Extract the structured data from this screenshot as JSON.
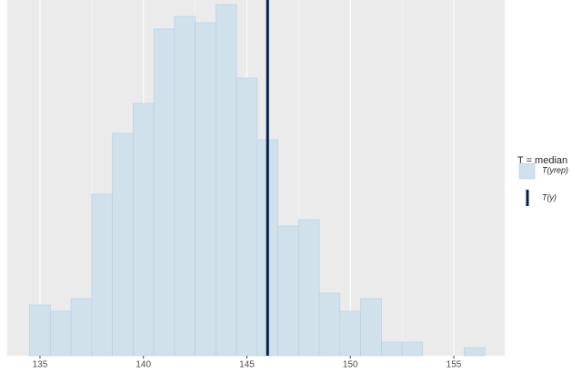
{
  "chart_data": {
    "type": "histogram",
    "bins": [
      134.5,
      135.5,
      136.5,
      137.5,
      138.5,
      139.5,
      140.5,
      141.5,
      142.5,
      143.5,
      144.5,
      145.5,
      146.5,
      147.5,
      148.5,
      149.5,
      150.5,
      151.5,
      152.5,
      153.5,
      154.5,
      155.5,
      156.5
    ],
    "counts": [
      56,
      49,
      63,
      178,
      245,
      278,
      360,
      374,
      367,
      387,
      306,
      238,
      143,
      150,
      69,
      49,
      63,
      15,
      15,
      0,
      0,
      9
    ],
    "color": "#d1e1ec",
    "edge_color": "#b3cde0",
    "stat_value": 146,
    "stat_color": "#011f4b",
    "xlim": [
      133.42,
      157.46
    ],
    "ylim": [
      0,
      392
    ],
    "xticks": [
      135,
      140,
      145,
      150,
      155
    ],
    "grid": true,
    "legend": {
      "title": "T = median",
      "labels": [
        "T(yrep)",
        "T(y)"
      ]
    }
  }
}
